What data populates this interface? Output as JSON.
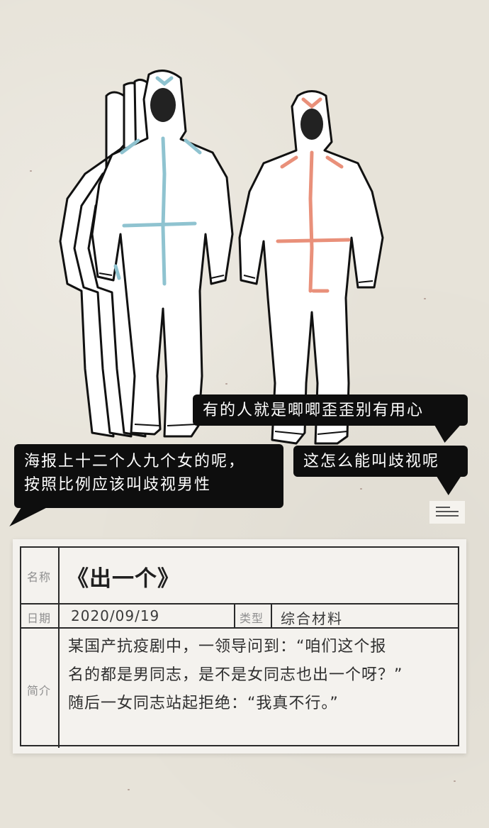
{
  "bubbles": {
    "right_top": "有的人就是唧唧歪歪别有用心",
    "left_line1": "海报上十二个人九个女的呢，",
    "left_line2": "按照比例应该叫歧视男性",
    "right_bottom": "这怎么能叫歧视呢"
  },
  "card": {
    "name_label": "名称",
    "name_value": "《出一个》",
    "date_label": "日期",
    "date_value": "2020/09/19",
    "type_label": "类型",
    "type_value": "综合材料",
    "intro_label": "简介",
    "intro_value": "某国产抗疫剧中，一领导问到：“咱们这个报\n名的都是男同志，是不是女同志也出一个呀？”\n随后一女同志站起拒绝：“我真不行。”"
  },
  "colors": {
    "blue_tape": "#8fc3d0",
    "orange_tape": "#e9907a",
    "bubble_bg": "#0e0e0e",
    "paper": "#e7e3d9"
  },
  "icons": [
    "menu-icon"
  ]
}
